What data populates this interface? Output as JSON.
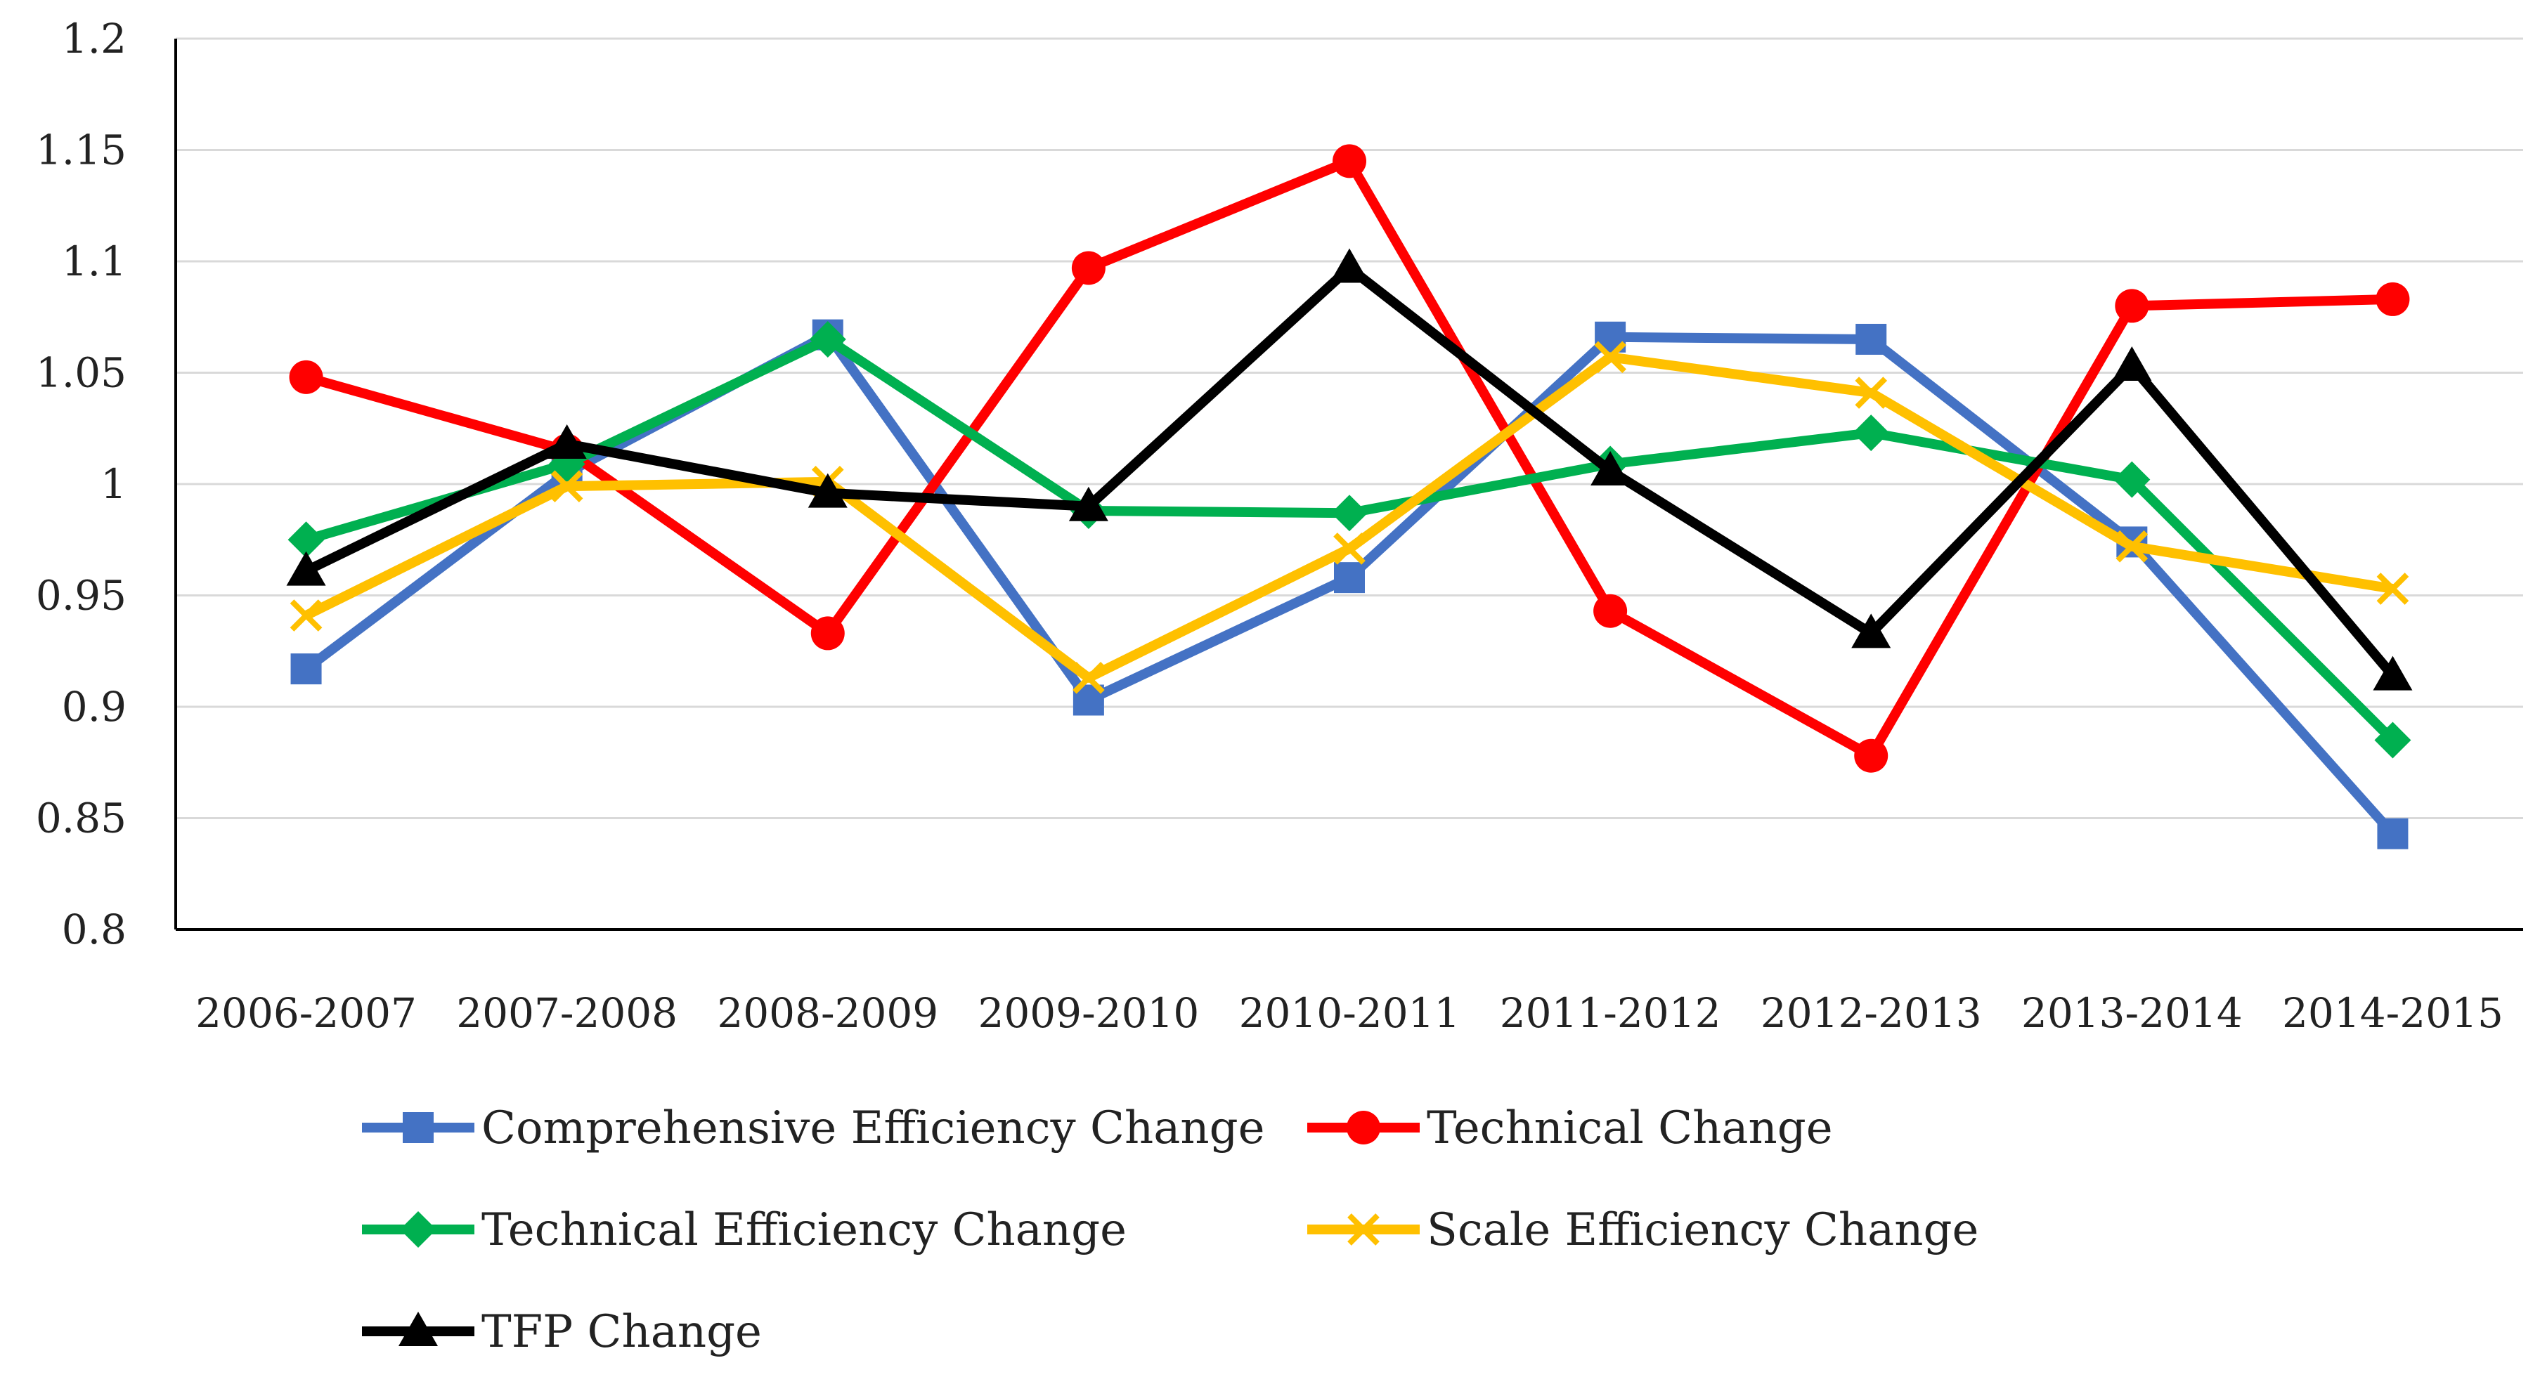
{
  "chart_data": {
    "type": "line",
    "title": "",
    "xlabel": "",
    "ylabel": "",
    "ylim": [
      0.8,
      1.2
    ],
    "yticks": [
      "0.8",
      "0.85",
      "0.9",
      "0.95",
      "1",
      "1.05",
      "1.1",
      "1.15",
      "1.2"
    ],
    "grid": true,
    "legend_position": "bottom",
    "categories": [
      "2006-2007",
      "2007-2008",
      "2008-2009",
      "2009-2010",
      "2010-2011",
      "2011-2012",
      "2012-2013",
      "2013-2014",
      "2014-2015"
    ],
    "series": [
      {
        "name": "Comprehensive Efficiency Change",
        "color": "#4472C4",
        "marker": "square",
        "values": [
          0.917,
          1.005,
          1.067,
          0.903,
          0.958,
          1.066,
          1.065,
          0.974,
          0.843
        ]
      },
      {
        "name": "Technical Change",
        "color": "#FF0000",
        "marker": "circle",
        "values": [
          1.048,
          1.015,
          0.933,
          1.097,
          1.145,
          0.943,
          0.878,
          1.08,
          1.083
        ]
      },
      {
        "name": "Technical Efficiency Change",
        "color": "#00B050",
        "marker": "diamond",
        "values": [
          0.975,
          1.009,
          1.065,
          0.988,
          0.987,
          1.009,
          1.023,
          1.002,
          0.885
        ]
      },
      {
        "name": "Scale Efficiency Change",
        "color": "#FFC000",
        "marker": "x",
        "values": [
          0.941,
          0.999,
          1.001,
          0.913,
          0.971,
          1.057,
          1.041,
          0.972,
          0.953
        ]
      },
      {
        "name": "TFP Change",
        "color": "#000000",
        "marker": "triangle",
        "values": [
          0.961,
          1.018,
          0.996,
          0.99,
          1.097,
          1.006,
          0.933,
          1.053,
          0.914
        ]
      }
    ]
  }
}
